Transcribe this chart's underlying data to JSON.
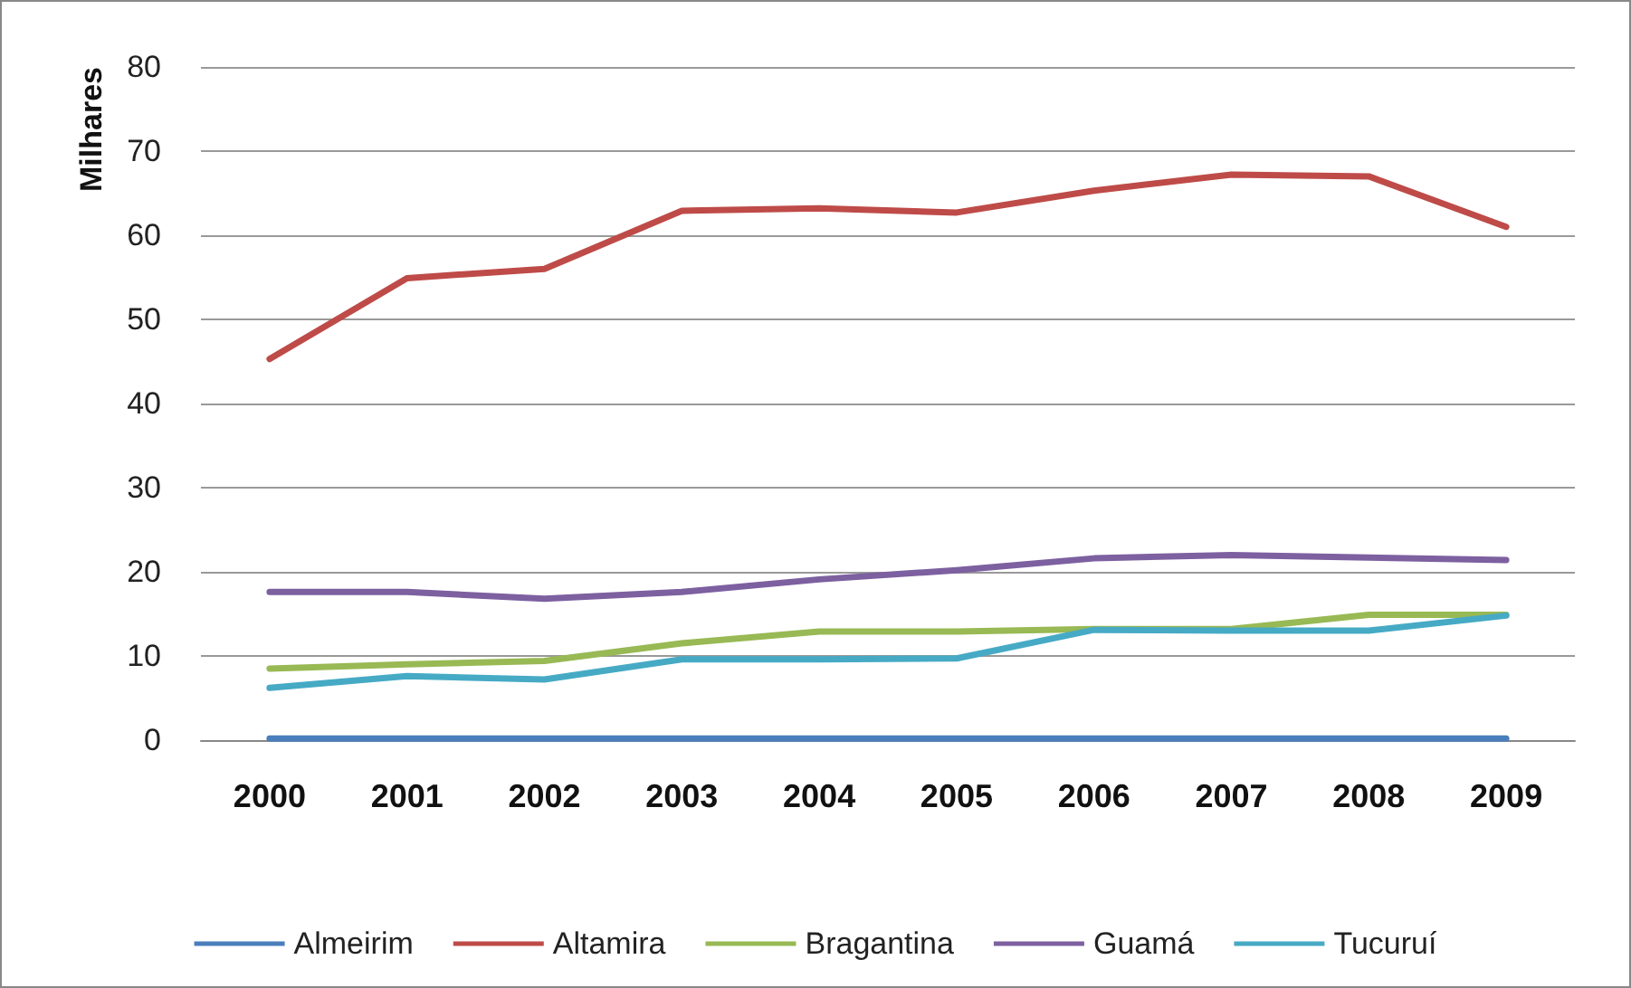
{
  "chart_data": {
    "type": "line",
    "ylabel": "Milhares",
    "categories": [
      "2000",
      "2001",
      "2002",
      "2003",
      "2004",
      "2005",
      "2006",
      "2007",
      "2008",
      "2009"
    ],
    "series": [
      {
        "name": "Almeirim",
        "color": "#4a7ebb",
        "values": [
          0.2,
          0.2,
          0.2,
          0.2,
          0.2,
          0.2,
          0.2,
          0.2,
          0.2,
          0.2
        ]
      },
      {
        "name": "Altamira",
        "color": "#be4b48",
        "values": [
          45.3,
          54.9,
          56,
          62.9,
          63.2,
          62.7,
          65.3,
          67.2,
          67,
          61
        ]
      },
      {
        "name": "Bragantina",
        "color": "#98b954",
        "values": [
          8.5,
          9,
          9.4,
          11.5,
          12.9,
          12.9,
          13.2,
          13.2,
          14.9,
          14.9
        ]
      },
      {
        "name": "Guamá",
        "color": "#7d60a0",
        "values": [
          17.6,
          17.6,
          16.8,
          17.6,
          19.1,
          20.2,
          21.6,
          22,
          21.7,
          21.4
        ]
      },
      {
        "name": "Tucuruí",
        "color": "#46aac5",
        "values": [
          6.2,
          7.6,
          7.2,
          9.6,
          9.6,
          9.7,
          13.1,
          13,
          13,
          14.8
        ]
      }
    ],
    "ylim": [
      0,
      80
    ],
    "yticks": [
      0,
      10,
      20,
      30,
      40,
      50,
      60,
      70,
      80
    ],
    "grid": "y",
    "legend": "bottom",
    "marker": "none",
    "line_style": "solid"
  }
}
